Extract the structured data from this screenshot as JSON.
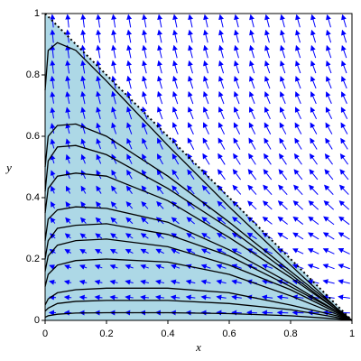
{
  "chart_data": {
    "type": "phaseportrait",
    "xlabel": "x",
    "ylabel": "y",
    "xlim": [
      0,
      1
    ],
    "ylim": [
      0,
      1
    ],
    "xticks": [
      0,
      0.2,
      0.4,
      0.6,
      0.8,
      1
    ],
    "yticks": [
      0,
      0.2,
      0.4,
      0.6,
      0.8,
      1
    ],
    "region_color": "#add8e6",
    "arrow_color": "#0000ff",
    "boundary_color": "#000000",
    "x": [
      0,
      0.01,
      0.04,
      0.1,
      0.2,
      0.4,
      0.6,
      0.8,
      0.95,
      1
    ],
    "series": [
      {
        "color": "#000000",
        "values": [
          0.75,
          0.88,
          0.905,
          0.88,
          0.78,
          0.57,
          0.37,
          0.18,
          0.04,
          0
        ]
      },
      {
        "color": "#000000",
        "values": [
          0.5,
          0.6,
          0.635,
          0.64,
          0.6,
          0.47,
          0.32,
          0.16,
          0.04,
          0
        ]
      },
      {
        "color": "#000000",
        "values": [
          0.42,
          0.52,
          0.565,
          0.57,
          0.54,
          0.43,
          0.3,
          0.15,
          0.035,
          0
        ]
      },
      {
        "color": "#000000",
        "values": [
          0.35,
          0.43,
          0.47,
          0.48,
          0.47,
          0.39,
          0.27,
          0.14,
          0.035,
          0
        ]
      },
      {
        "color": "#000000",
        "values": [
          0.26,
          0.33,
          0.36,
          0.37,
          0.365,
          0.32,
          0.23,
          0.12,
          0.03,
          0
        ]
      },
      {
        "color": "#000000",
        "values": [
          0.2,
          0.26,
          0.3,
          0.31,
          0.315,
          0.28,
          0.21,
          0.11,
          0.03,
          0
        ]
      },
      {
        "color": "#000000",
        "values": [
          0.16,
          0.21,
          0.245,
          0.26,
          0.265,
          0.24,
          0.18,
          0.1,
          0.025,
          0
        ]
      },
      {
        "color": "#000000",
        "values": [
          0.11,
          0.15,
          0.18,
          0.195,
          0.2,
          0.19,
          0.15,
          0.08,
          0.02,
          0
        ]
      },
      {
        "color": "#000000",
        "values": [
          0.05,
          0.07,
          0.09,
          0.1,
          0.105,
          0.105,
          0.09,
          0.05,
          0.015,
          0
        ]
      },
      {
        "color": "#000000",
        "values": [
          0.03,
          0.04,
          0.055,
          0.062,
          0.065,
          0.065,
          0.055,
          0.035,
          0.01,
          0
        ]
      },
      {
        "color": "#000000",
        "values": [
          0.01,
          0.015,
          0.02,
          0.024,
          0.025,
          0.025,
          0.022,
          0.015,
          0.005,
          0
        ]
      }
    ]
  }
}
